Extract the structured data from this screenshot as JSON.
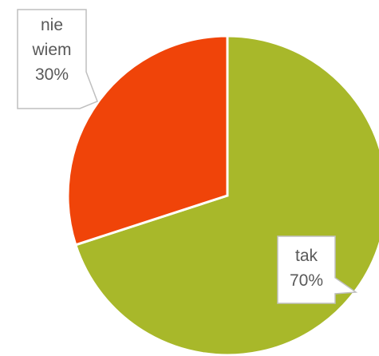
{
  "chart_data": {
    "type": "pie",
    "categories": [
      "tak",
      "nie wiem"
    ],
    "values": [
      70,
      30
    ],
    "value_labels": [
      "70%",
      "30%"
    ],
    "colors": [
      "#a8b82a",
      "#f04409"
    ]
  }
}
